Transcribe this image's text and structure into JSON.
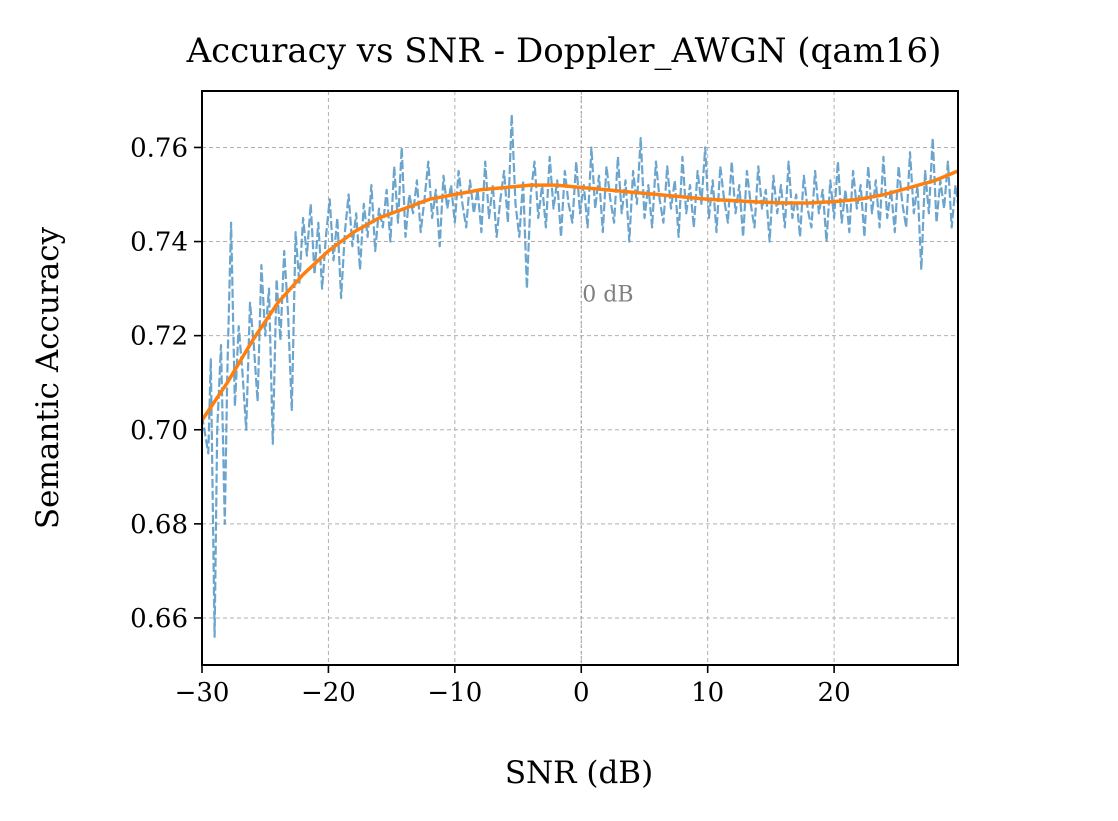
{
  "chart_data": {
    "type": "line",
    "title": "Accuracy vs SNR - Doppler_AWGN (qam16)",
    "xlabel": "SNR (dB)",
    "ylabel": "Semantic Accuracy",
    "xlim": [
      -30,
      29.8
    ],
    "ylim": [
      0.65,
      0.772
    ],
    "x_ticks": [
      -30,
      -20,
      -10,
      0,
      10,
      20
    ],
    "x_tick_labels": [
      "−30",
      "−20",
      "−10",
      "0",
      "10",
      "20"
    ],
    "y_ticks": [
      0.66,
      0.68,
      0.7,
      0.72,
      0.74,
      0.76
    ],
    "y_tick_labels": [
      "0.66",
      "0.68",
      "0.70",
      "0.72",
      "0.74",
      "0.76"
    ],
    "grid": true,
    "annotation": {
      "text": "0 dB",
      "x": 0,
      "y": 0.729
    },
    "reference_line_x": 0,
    "series": [
      {
        "style": "dashed",
        "color": "#5b9bc9",
        "description_points": [
          [
            -30.0,
            0.703
          ],
          [
            -29.5,
            0.695
          ],
          [
            -29.3,
            0.715
          ],
          [
            -29.0,
            0.656
          ],
          [
            -28.8,
            0.7
          ],
          [
            -28.5,
            0.718
          ],
          [
            -28.2,
            0.68
          ],
          [
            -28.0,
            0.712
          ],
          [
            -27.7,
            0.744
          ],
          [
            -27.4,
            0.705
          ],
          [
            -27.1,
            0.722
          ],
          [
            -26.8,
            0.712
          ],
          [
            -26.5,
            0.7
          ],
          [
            -26.2,
            0.727
          ],
          [
            -25.9,
            0.718
          ],
          [
            -25.6,
            0.706
          ],
          [
            -25.3,
            0.735
          ],
          [
            -25.0,
            0.72
          ],
          [
            -24.7,
            0.73
          ],
          [
            -24.4,
            0.697
          ],
          [
            -24.1,
            0.732
          ],
          [
            -23.8,
            0.719
          ],
          [
            -23.5,
            0.738
          ],
          [
            -23.2,
            0.725
          ],
          [
            -22.9,
            0.704
          ],
          [
            -22.6,
            0.742
          ],
          [
            -22.3,
            0.731
          ],
          [
            -22.0,
            0.745
          ],
          [
            -21.7,
            0.737
          ],
          [
            -21.4,
            0.748
          ],
          [
            -21.1,
            0.733
          ],
          [
            -20.8,
            0.744
          ],
          [
            -20.5,
            0.73
          ],
          [
            -20.2,
            0.741
          ],
          [
            -19.9,
            0.749
          ],
          [
            -19.6,
            0.736
          ],
          [
            -19.3,
            0.745
          ],
          [
            -19.0,
            0.728
          ],
          [
            -18.7,
            0.742
          ],
          [
            -18.4,
            0.75
          ],
          [
            -18.1,
            0.739
          ],
          [
            -17.8,
            0.746
          ],
          [
            -17.5,
            0.734
          ],
          [
            -17.2,
            0.748
          ],
          [
            -16.9,
            0.741
          ],
          [
            -16.6,
            0.752
          ],
          [
            -16.3,
            0.738
          ],
          [
            -16.0,
            0.747
          ],
          [
            -15.7,
            0.743
          ],
          [
            -15.4,
            0.751
          ],
          [
            -15.1,
            0.74
          ],
          [
            -14.8,
            0.756
          ],
          [
            -14.5,
            0.744
          ],
          [
            -14.2,
            0.76
          ],
          [
            -13.9,
            0.741
          ],
          [
            -13.6,
            0.75
          ],
          [
            -13.3,
            0.746
          ],
          [
            -13.0,
            0.753
          ],
          [
            -12.7,
            0.742
          ],
          [
            -12.4,
            0.749
          ],
          [
            -12.1,
            0.757
          ],
          [
            -11.8,
            0.745
          ],
          [
            -11.5,
            0.751
          ],
          [
            -11.2,
            0.739
          ],
          [
            -10.9,
            0.754
          ],
          [
            -10.6,
            0.747
          ],
          [
            -10.3,
            0.752
          ],
          [
            -10.0,
            0.744
          ],
          [
            -9.7,
            0.755
          ],
          [
            -9.4,
            0.748
          ],
          [
            -9.1,
            0.743
          ],
          [
            -8.8,
            0.753
          ],
          [
            -8.5,
            0.746
          ],
          [
            -8.2,
            0.751
          ],
          [
            -7.9,
            0.742
          ],
          [
            -7.6,
            0.757
          ],
          [
            -7.3,
            0.745
          ],
          [
            -7.0,
            0.752
          ],
          [
            -6.7,
            0.741
          ],
          [
            -6.4,
            0.749
          ],
          [
            -6.1,
            0.755
          ],
          [
            -5.8,
            0.744
          ],
          [
            -5.5,
            0.767
          ],
          [
            -5.2,
            0.748
          ],
          [
            -4.9,
            0.741
          ],
          [
            -4.6,
            0.753
          ],
          [
            -4.3,
            0.73
          ],
          [
            -4.0,
            0.75
          ],
          [
            -3.7,
            0.757
          ],
          [
            -3.4,
            0.745
          ],
          [
            -3.1,
            0.752
          ],
          [
            -2.8,
            0.743
          ],
          [
            -2.5,
            0.758
          ],
          [
            -2.2,
            0.747
          ],
          [
            -1.9,
            0.753
          ],
          [
            -1.6,
            0.741
          ],
          [
            -1.3,
            0.755
          ],
          [
            -1.0,
            0.748
          ],
          [
            -0.7,
            0.744
          ],
          [
            -0.4,
            0.757
          ],
          [
            -0.1,
            0.746
          ],
          [
            0.2,
            0.752
          ],
          [
            0.5,
            0.743
          ],
          [
            0.8,
            0.76
          ],
          [
            1.1,
            0.747
          ],
          [
            1.4,
            0.754
          ],
          [
            1.7,
            0.742
          ],
          [
            2.0,
            0.756
          ],
          [
            2.3,
            0.749
          ],
          [
            2.6,
            0.744
          ],
          [
            2.9,
            0.758
          ],
          [
            3.2,
            0.746
          ],
          [
            3.5,
            0.753
          ],
          [
            3.8,
            0.74
          ],
          [
            4.1,
            0.755
          ],
          [
            4.4,
            0.748
          ],
          [
            4.7,
            0.762
          ],
          [
            5.0,
            0.745
          ],
          [
            5.3,
            0.752
          ],
          [
            5.6,
            0.743
          ],
          [
            5.9,
            0.757
          ],
          [
            6.2,
            0.749
          ],
          [
            6.5,
            0.744
          ],
          [
            6.8,
            0.756
          ],
          [
            7.1,
            0.747
          ],
          [
            7.4,
            0.753
          ],
          [
            7.7,
            0.741
          ],
          [
            8.0,
            0.758
          ],
          [
            8.3,
            0.746
          ],
          [
            8.6,
            0.752
          ],
          [
            8.9,
            0.743
          ],
          [
            9.2,
            0.755
          ],
          [
            9.5,
            0.748
          ],
          [
            9.8,
            0.76
          ],
          [
            10.1,
            0.745
          ],
          [
            10.4,
            0.753
          ],
          [
            10.7,
            0.742
          ],
          [
            11.0,
            0.756
          ],
          [
            11.3,
            0.749
          ],
          [
            11.6,
            0.744
          ],
          [
            11.9,
            0.757
          ],
          [
            12.2,
            0.746
          ],
          [
            12.5,
            0.752
          ],
          [
            12.8,
            0.741
          ],
          [
            13.1,
            0.755
          ],
          [
            13.4,
            0.748
          ],
          [
            13.7,
            0.743
          ],
          [
            14.0,
            0.756
          ],
          [
            14.3,
            0.747
          ],
          [
            14.6,
            0.751
          ],
          [
            14.9,
            0.74
          ],
          [
            15.2,
            0.754
          ],
          [
            15.5,
            0.746
          ],
          [
            15.8,
            0.752
          ],
          [
            16.1,
            0.743
          ],
          [
            16.4,
            0.757
          ],
          [
            16.7,
            0.745
          ],
          [
            17.0,
            0.75
          ],
          [
            17.3,
            0.741
          ],
          [
            17.6,
            0.754
          ],
          [
            17.9,
            0.747
          ],
          [
            18.2,
            0.743
          ],
          [
            18.5,
            0.755
          ],
          [
            18.8,
            0.746
          ],
          [
            19.1,
            0.751
          ],
          [
            19.4,
            0.74
          ],
          [
            19.7,
            0.753
          ],
          [
            20.0,
            0.745
          ],
          [
            20.3,
            0.757
          ],
          [
            20.6,
            0.744
          ],
          [
            20.9,
            0.751
          ],
          [
            21.2,
            0.742
          ],
          [
            21.5,
            0.755
          ],
          [
            21.8,
            0.747
          ],
          [
            22.1,
            0.752
          ],
          [
            22.4,
            0.741
          ],
          [
            22.7,
            0.756
          ],
          [
            23.0,
            0.746
          ],
          [
            23.3,
            0.753
          ],
          [
            23.6,
            0.743
          ],
          [
            23.9,
            0.758
          ],
          [
            24.2,
            0.745
          ],
          [
            24.5,
            0.751
          ],
          [
            24.8,
            0.742
          ],
          [
            25.1,
            0.756
          ],
          [
            25.4,
            0.748
          ],
          [
            25.7,
            0.743
          ],
          [
            26.0,
            0.759
          ],
          [
            26.3,
            0.746
          ],
          [
            26.6,
            0.752
          ],
          [
            26.9,
            0.734
          ],
          [
            27.2,
            0.755
          ],
          [
            27.5,
            0.746
          ],
          [
            27.8,
            0.762
          ],
          [
            28.1,
            0.744
          ],
          [
            28.4,
            0.753
          ],
          [
            28.7,
            0.747
          ],
          [
            29.0,
            0.757
          ],
          [
            29.3,
            0.743
          ],
          [
            29.6,
            0.752
          ],
          [
            29.8,
            0.748
          ]
        ]
      },
      {
        "style": "solid",
        "color": "#ff7f0e",
        "description_points": [
          [
            -30,
            0.702
          ],
          [
            -28,
            0.71
          ],
          [
            -26,
            0.719
          ],
          [
            -24,
            0.727
          ],
          [
            -22,
            0.733
          ],
          [
            -20,
            0.738
          ],
          [
            -18,
            0.742
          ],
          [
            -16,
            0.745
          ],
          [
            -14,
            0.747
          ],
          [
            -12,
            0.749
          ],
          [
            -10,
            0.75
          ],
          [
            -8,
            0.751
          ],
          [
            -6,
            0.7515
          ],
          [
            -4,
            0.752
          ],
          [
            -2,
            0.752
          ],
          [
            0,
            0.7515
          ],
          [
            2,
            0.751
          ],
          [
            4,
            0.7505
          ],
          [
            6,
            0.75
          ],
          [
            8,
            0.7495
          ],
          [
            10,
            0.749
          ],
          [
            12,
            0.7487
          ],
          [
            14,
            0.7484
          ],
          [
            16,
            0.7482
          ],
          [
            18,
            0.7482
          ],
          [
            20,
            0.7485
          ],
          [
            22,
            0.749
          ],
          [
            24,
            0.75
          ],
          [
            26,
            0.7515
          ],
          [
            28,
            0.753
          ],
          [
            29.8,
            0.755
          ]
        ]
      }
    ]
  }
}
